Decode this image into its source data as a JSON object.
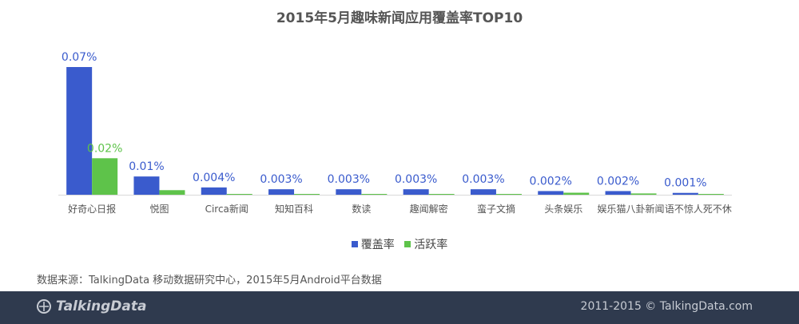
{
  "chart_data": {
    "type": "bar",
    "title": "2015年5月趣味新闻应用覆盖率TOP10",
    "categories": [
      "好奇心日报",
      "悦图",
      "Circa新闻",
      "知知百科",
      "数读",
      "趣闻解密",
      "蛮子文摘",
      "头条娱乐",
      "娱乐猫八卦新闻",
      "语不惊人死不休"
    ],
    "series": [
      {
        "name": "覆盖率",
        "color": "#3a5bcd",
        "values": [
          0.07,
          0.01,
          0.004,
          0.003,
          0.003,
          0.003,
          0.003,
          0.002,
          0.002,
          0.001
        ],
        "labels": [
          "0.07%",
          "0.01%",
          "0.004%",
          "0.003%",
          "0.003%",
          "0.003%",
          "0.003%",
          "0.002%",
          "0.002%",
          "0.001%"
        ]
      },
      {
        "name": "活跃率",
        "color": "#5ec34a",
        "values": [
          0.02,
          0.0025,
          0.0004,
          0.0004,
          0.0003,
          0.0004,
          0.0003,
          0.0011,
          0.0007,
          0.0002
        ],
        "labels": [
          "0.02%",
          "",
          "",
          "",
          "",
          "",
          "",
          "",
          "",
          ""
        ]
      }
    ],
    "ylim": [
      0,
      0.07
    ],
    "legend_position": "bottom-center",
    "grid": false
  },
  "source_text": "数据来源：TalkingData 移动数据研究中心，2015年5月Android平台数据",
  "footer": {
    "brand": "TalkingData",
    "copyright": "2011-2015 © TalkingData.com"
  }
}
